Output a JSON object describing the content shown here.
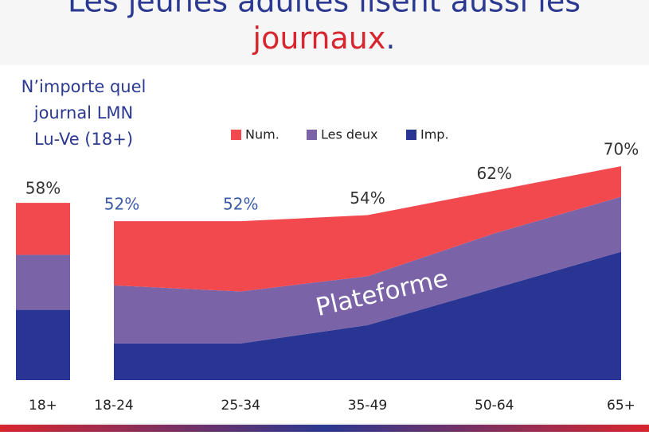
{
  "header": {
    "title_parts": [
      {
        "text": "Les jeunes adultes lisent aussi les",
        "color": "#2b3990"
      },
      {
        "text": "journaux",
        "color": "#d7262e"
      },
      {
        "text": ".",
        "color": "#2b3990"
      }
    ]
  },
  "chart_data": [
    {
      "type": "bar",
      "note_lines": [
        "N’importe quel",
        "journal LMN",
        "Lu-Ve (18+)"
      ],
      "categories": [
        "18+"
      ],
      "series": [
        {
          "color": "#283593",
          "values": [
            23
          ]
        },
        {
          "color": "#7b63a8",
          "values": [
            18
          ]
        },
        {
          "color": "#f2494f",
          "values": [
            17
          ]
        }
      ],
      "totals": [
        58
      ],
      "total_labels": [
        "58%"
      ],
      "ylim": [
        0,
        70
      ]
    },
    {
      "type": "area",
      "stacked": true,
      "categories": [
        "18-24",
        "25-34",
        "35-49",
        "50-64",
        "65+"
      ],
      "series": [
        {
          "name": "Imp.",
          "color": "#283593",
          "values": [
            12,
            12,
            18,
            30,
            42
          ]
        },
        {
          "name": "Les deux",
          "color": "#7b63a8",
          "values": [
            19,
            17,
            16,
            18,
            18
          ]
        },
        {
          "name": "Num.",
          "color": "#f2494f",
          "values": [
            21,
            23,
            20,
            14,
            10
          ]
        }
      ],
      "totals": [
        52,
        52,
        54,
        62,
        70
      ],
      "total_labels": [
        "52%",
        "52%",
        "54%",
        "62%",
        "70%"
      ],
      "annotation": "Plateforme",
      "ylim": [
        0,
        70
      ]
    }
  ]
}
